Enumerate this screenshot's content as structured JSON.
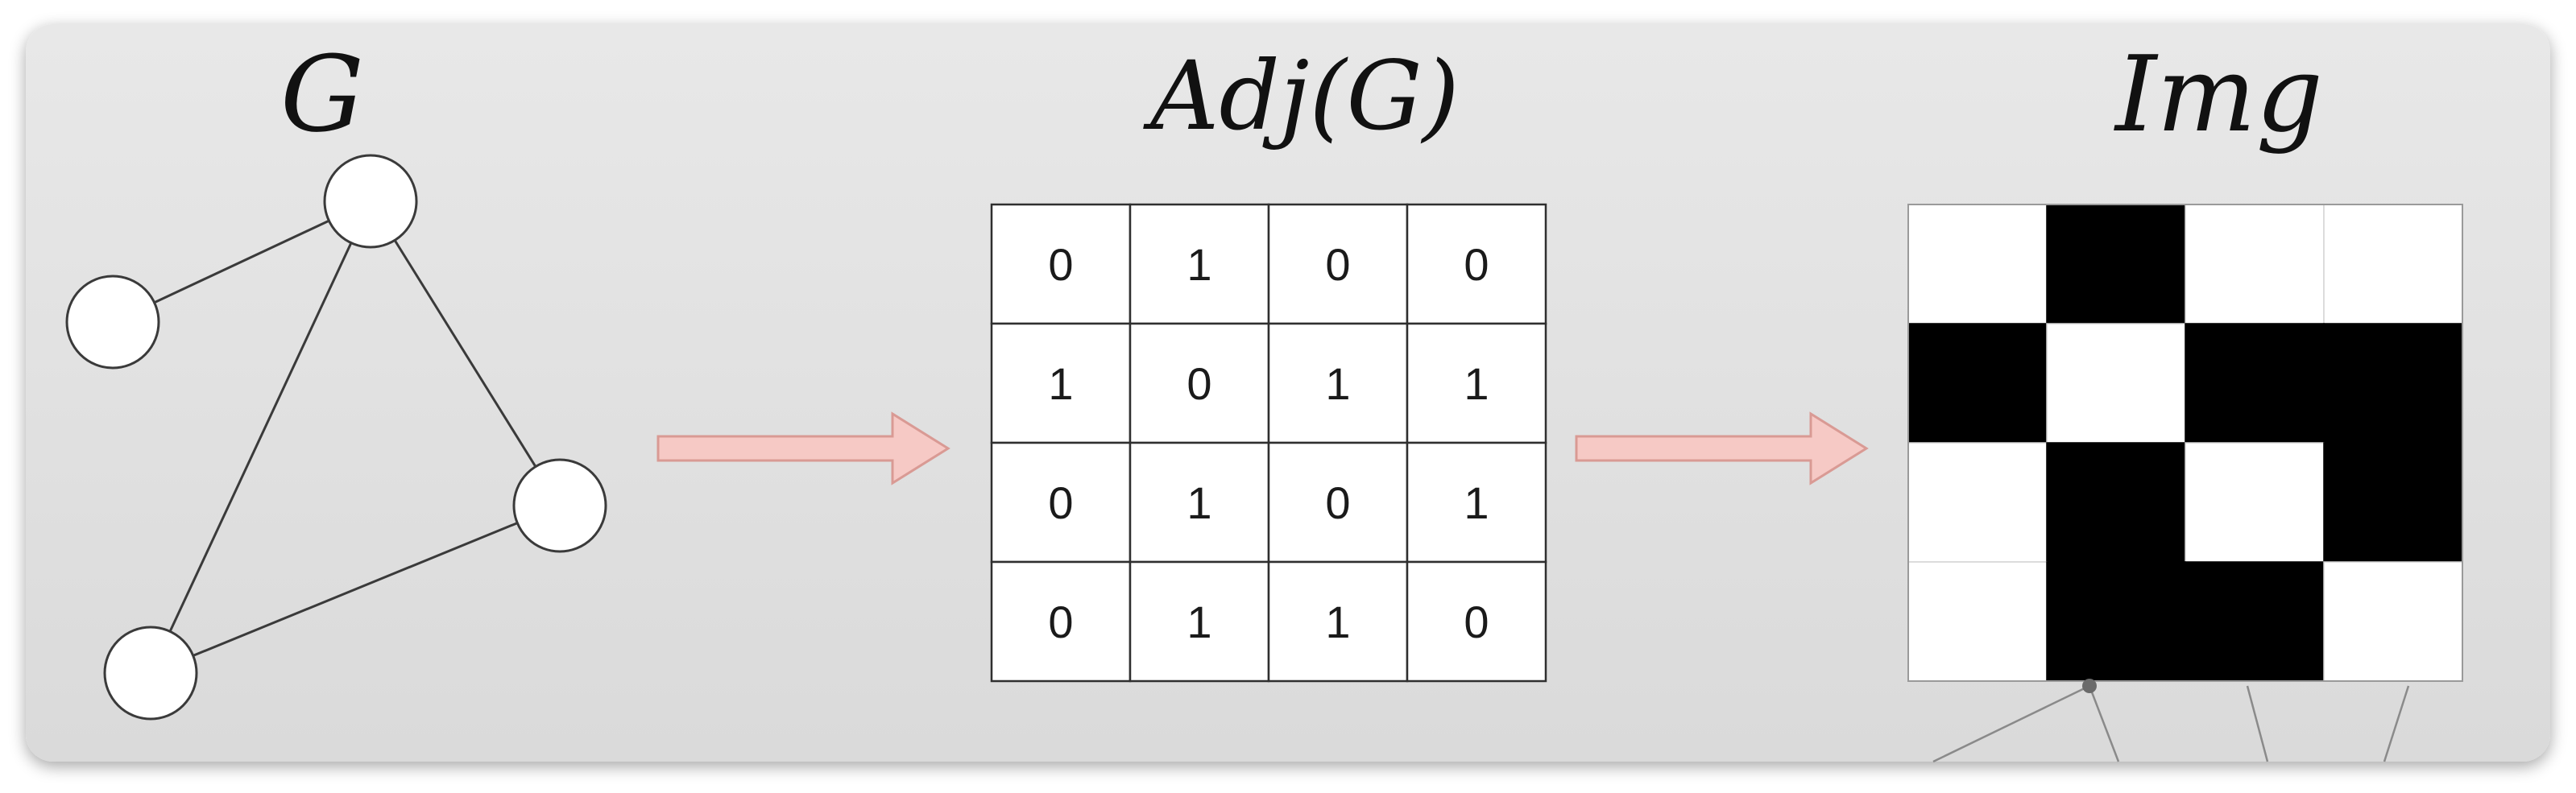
{
  "panel": {
    "background_top": "#e7e7e7",
    "background_bottom": "#dcdcdc"
  },
  "graph": {
    "title": "G",
    "nodes": [
      "n1",
      "n2",
      "n3",
      "n4"
    ],
    "edges": [
      [
        "n1",
        "n2"
      ],
      [
        "n2",
        "n3"
      ],
      [
        "n2",
        "n4"
      ],
      [
        "n3",
        "n4"
      ]
    ]
  },
  "matrix": {
    "title": "Adj(G)",
    "rows": [
      [
        "0",
        "1",
        "0",
        "0"
      ],
      [
        "1",
        "0",
        "1",
        "1"
      ],
      [
        "0",
        "1",
        "0",
        "1"
      ],
      [
        "0",
        "1",
        "1",
        "0"
      ]
    ]
  },
  "image": {
    "title": "Img",
    "pixels": [
      [
        0,
        1,
        0,
        0
      ],
      [
        1,
        0,
        1,
        1
      ],
      [
        0,
        1,
        0,
        1
      ],
      [
        0,
        1,
        1,
        0
      ]
    ],
    "on_color": "#000000",
    "off_color": "#ffffff"
  },
  "arrows": {
    "fill": "#f6c9c5",
    "stroke": "#d99a94"
  }
}
